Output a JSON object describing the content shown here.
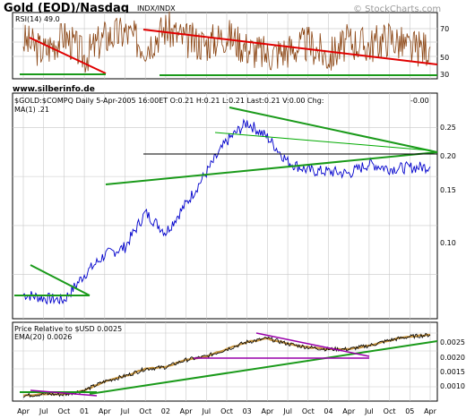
{
  "header": {
    "title": "Gold (EOD)/Nasdaq",
    "exchange": "INDX/INDX",
    "watermark": "© StockCharts.com",
    "website": "www.silberinfo.de"
  },
  "rsi_panel": {
    "legend": "RSI(14) 49.0",
    "ticks": [
      "70",
      "50",
      "30"
    ]
  },
  "price_panel": {
    "legend": "$GOLD:$COMPQ Daily  5-Apr-2005 16:00ET  O:0.21  H:0.21  L:0.21  Last:0.21  V:0.00  Chg:",
    "change": "-0.00",
    "ma_legend": "MA(1) .21",
    "ticks": [
      "0.25",
      "0.20",
      "0.15",
      "0.10"
    ]
  },
  "rel_panel": {
    "legend": "Price Relative to $USD  0.0025",
    "ema_legend": "EMA(20) 0.0026",
    "ticks": [
      "0.0025",
      "0.0020",
      "0.0015",
      "0.0010"
    ]
  },
  "x_axis": {
    "labels": [
      "Apr",
      "Jul",
      "Oct",
      "01",
      "Apr",
      "Jul",
      "Oct",
      "02",
      "Apr",
      "Jul",
      "Oct",
      "03",
      "Apr",
      "Jul",
      "Oct",
      "04",
      "Apr",
      "Jul",
      "Oct",
      "05",
      "Apr"
    ]
  },
  "colors": {
    "rsi": "#8b4513",
    "price": "#0000cc",
    "relative": "#000000",
    "ema": "#c89640",
    "trend_green": "#1a9a1a",
    "trend_red": "#e00000",
    "trend_purple": "#9900aa",
    "grid": "#c8c8c8",
    "change": "#e00000"
  },
  "chart_data": {
    "type": "line",
    "x": [
      "2000-04",
      "2000-07",
      "2000-10",
      "2001-01",
      "2001-04",
      "2001-07",
      "2001-10",
      "2002-01",
      "2002-04",
      "2002-07",
      "2002-10",
      "2003-01",
      "2003-04",
      "2003-07",
      "2003-10",
      "2004-01",
      "2004-04",
      "2004-07",
      "2004-10",
      "2005-01",
      "2005-04"
    ],
    "series": [
      {
        "name": "$GOLD:$COMPQ",
        "values": [
          0.08,
          0.076,
          0.074,
          0.1,
          0.12,
          0.128,
          0.163,
          0.143,
          0.172,
          0.204,
          0.236,
          0.255,
          0.24,
          0.215,
          0.206,
          0.205,
          0.203,
          0.213,
          0.208,
          0.209,
          0.21
        ]
      },
      {
        "name": "Price Relative to $USD",
        "values": [
          0.00075,
          0.0008,
          0.00078,
          0.0009,
          0.00115,
          0.0013,
          0.0015,
          0.00155,
          0.00175,
          0.00185,
          0.00205,
          0.00225,
          0.00235,
          0.0022,
          0.0021,
          0.00205,
          0.00205,
          0.00215,
          0.0023,
          0.0024,
          0.00245
        ]
      },
      {
        "name": "RSI(14)",
        "values": [
          55,
          45,
          60,
          40,
          58,
          62,
          50,
          66,
          55,
          52,
          60,
          48,
          42,
          46,
          52,
          40,
          54,
          50,
          58,
          47,
          49
        ]
      }
    ],
    "ylim": [
      0.055,
      0.285
    ],
    "rel_ylim": [
      0.0006,
      0.0028
    ],
    "rsi_ylim": [
      20,
      80
    ]
  }
}
